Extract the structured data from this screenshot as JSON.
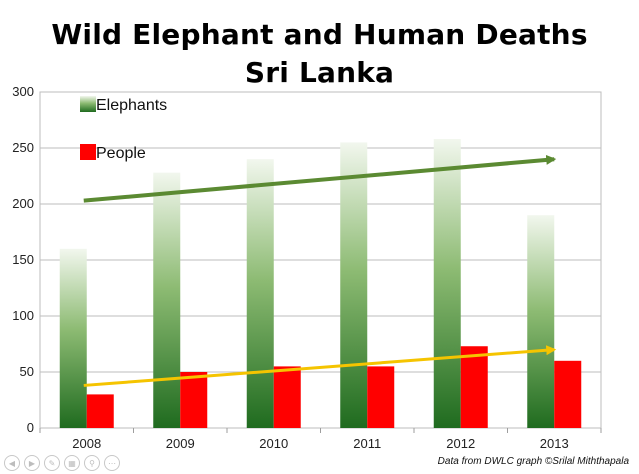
{
  "title_line1": "Wild Elephant and Human Deaths",
  "title_line2": "Sri Lanka",
  "source_note": "Data from DWLC  graph ©Srilal Miththapala",
  "nav_icons": [
    "prev-icon",
    "next-icon",
    "pen-icon",
    "slides-icon",
    "zoom-icon",
    "more-icon"
  ],
  "chart_data": {
    "type": "bar",
    "title": "Wild Elephant and Human Deaths Sri Lanka",
    "categories": [
      "2008",
      "2009",
      "2010",
      "2011",
      "2012",
      "2013"
    ],
    "series": [
      {
        "name": "Elephants",
        "values": [
          160,
          228,
          240,
          255,
          258,
          190
        ],
        "color": "#2e7d2a"
      },
      {
        "name": "People",
        "values": [
          30,
          50,
          55,
          55,
          73,
          60
        ],
        "color": "#ff0000"
      }
    ],
    "trend_lines": [
      {
        "series": "Elephants",
        "from": [
          "2008",
          203
        ],
        "to": [
          "2013",
          240
        ],
        "color": "#5b8a32"
      },
      {
        "series": "People",
        "from": [
          "2008",
          38
        ],
        "to": [
          "2013",
          70
        ],
        "color": "#f5c400"
      }
    ],
    "ylim": [
      0,
      300
    ],
    "yticks": [
      0,
      50,
      100,
      150,
      200,
      250,
      300
    ],
    "grid": true,
    "legend_position": "top-left"
  }
}
